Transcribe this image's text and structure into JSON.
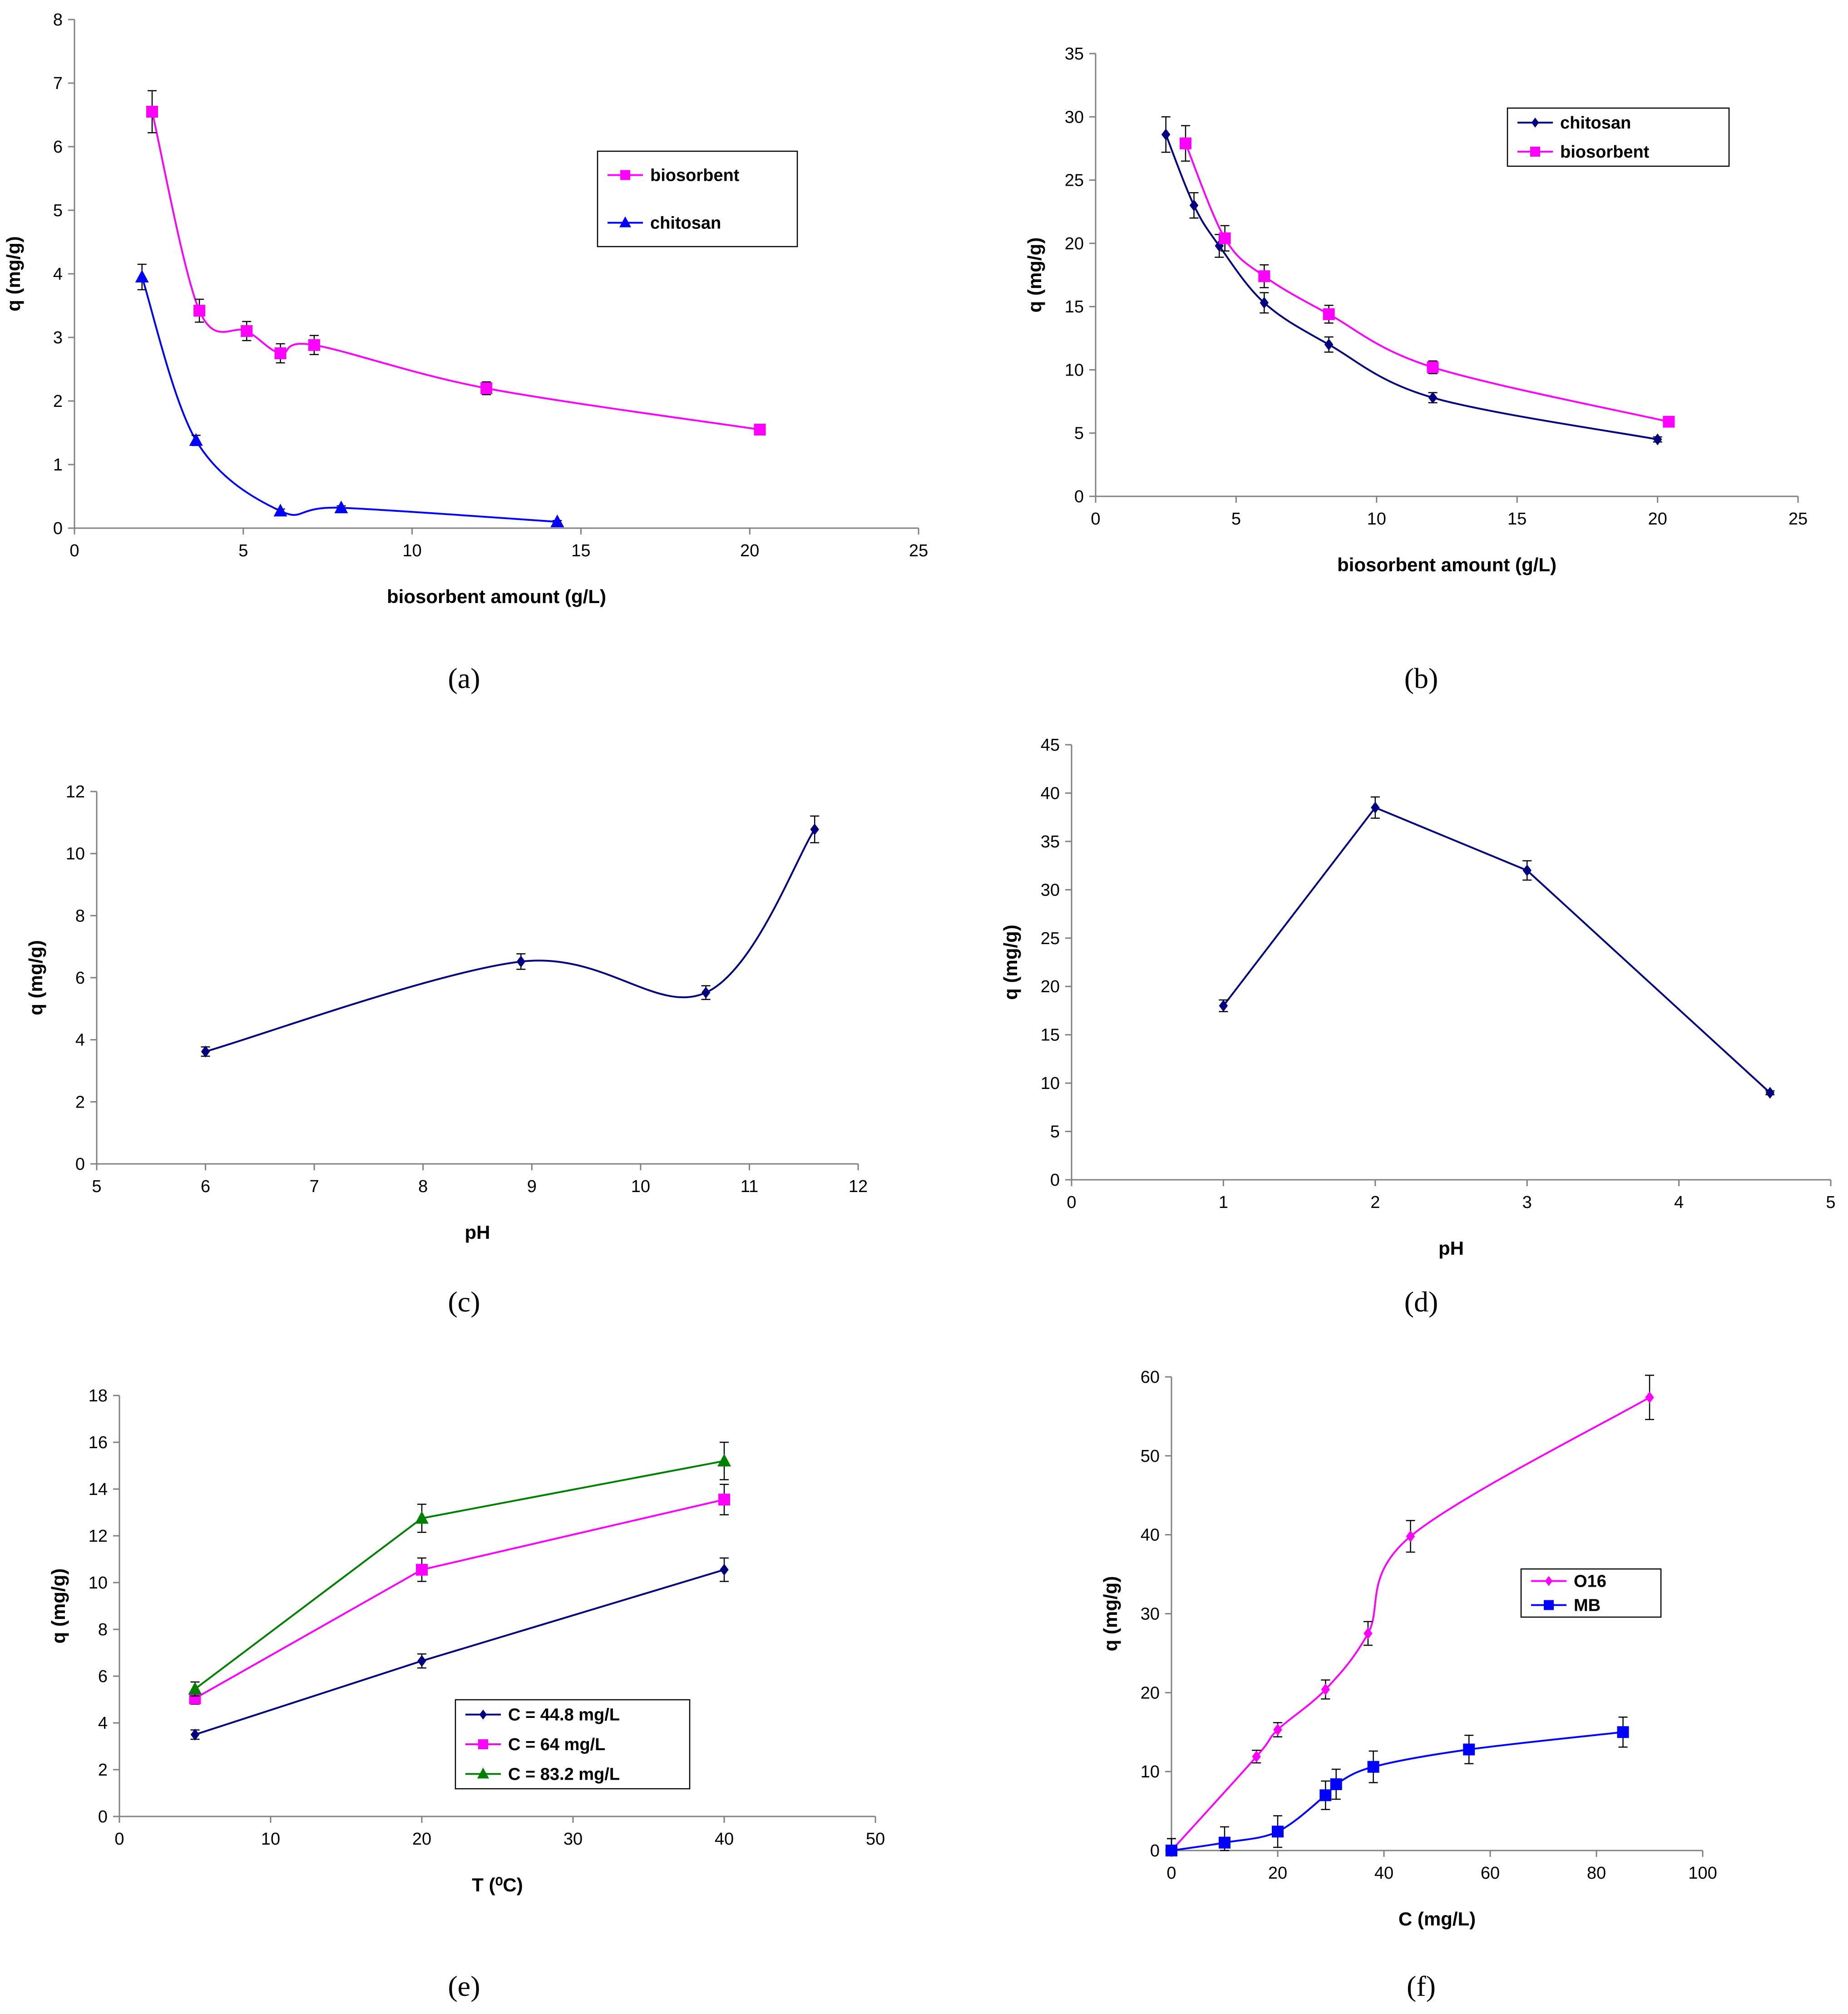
{
  "figure": {
    "panels": [
      "a",
      "b",
      "c",
      "d",
      "e",
      "f"
    ]
  },
  "colors": {
    "magenta": "#FF00FF",
    "blue": "#0000FF",
    "navy": "#000080",
    "green": "#008000",
    "axis": "#808080"
  },
  "chart_data": [
    {
      "panel": "a",
      "caption": "(a)",
      "type": "line",
      "smooth": true,
      "xlabel": "biosorbent amount  (g/L)",
      "ylabel": "q (mg/g)",
      "xlim": [
        0,
        25
      ],
      "ylim": [
        0,
        8
      ],
      "xticks": [
        0,
        5,
        10,
        15,
        20,
        25
      ],
      "yticks": [
        0,
        1,
        2,
        3,
        4,
        5,
        6,
        7,
        8
      ],
      "legend_position": "top-right",
      "series": [
        {
          "name": "biosorbent",
          "color": "#FF00FF",
          "marker": "square",
          "x": [
            2.3,
            3.7,
            5.1,
            6.1,
            7.1,
            12.2,
            20.3
          ],
          "y": [
            6.55,
            3.42,
            3.1,
            2.75,
            2.88,
            2.2,
            1.55
          ],
          "err": [
            0.33,
            0.18,
            0.15,
            0.15,
            0.15,
            0.1,
            0.05
          ]
        },
        {
          "name": "chitosan",
          "color": "#0000FF",
          "marker": "triangle",
          "x": [
            2.0,
            3.6,
            6.1,
            7.9,
            14.3
          ],
          "y": [
            3.95,
            1.38,
            0.27,
            0.32,
            0.1
          ],
          "err": [
            0.2,
            0.08,
            0.03,
            0.03,
            0.02
          ]
        }
      ]
    },
    {
      "panel": "b",
      "caption": "(b)",
      "type": "line",
      "smooth": true,
      "xlabel": "biosorbent amount (g/L)",
      "ylabel": "q (mg/g)",
      "xlim": [
        0,
        25
      ],
      "ylim": [
        0,
        35
      ],
      "xticks": [
        0,
        5,
        10,
        15,
        20,
        25
      ],
      "yticks": [
        0,
        5,
        10,
        15,
        20,
        25,
        30,
        35
      ],
      "legend_position": "top-right",
      "series": [
        {
          "name": "chitosan",
          "color": "#000080",
          "marker": "diamond",
          "x": [
            2.5,
            3.5,
            4.4,
            6.0,
            8.3,
            12.0,
            20.0
          ],
          "y": [
            28.6,
            23.0,
            19.8,
            15.3,
            12.0,
            7.8,
            4.5
          ],
          "err": [
            1.4,
            1.0,
            0.9,
            0.8,
            0.6,
            0.4,
            0.2
          ]
        },
        {
          "name": "biosorbent",
          "color": "#FF00FF",
          "marker": "square",
          "x": [
            3.2,
            4.6,
            6.0,
            8.3,
            12.0,
            20.4
          ],
          "y": [
            27.9,
            20.4,
            17.4,
            14.4,
            10.2,
            5.9
          ],
          "err": [
            1.4,
            1.0,
            0.9,
            0.7,
            0.5,
            0.2
          ]
        }
      ]
    },
    {
      "panel": "c",
      "caption": "(c)",
      "type": "line",
      "smooth": true,
      "xlabel": "pH",
      "ylabel": "q (mg/g)",
      "xlim": [
        5,
        12
      ],
      "ylim": [
        0,
        12
      ],
      "xticks": [
        5,
        6,
        7,
        8,
        9,
        10,
        11,
        12
      ],
      "yticks": [
        0,
        2,
        4,
        6,
        8,
        10,
        12
      ],
      "series": [
        {
          "name": "",
          "color": "#000080",
          "marker": "diamond",
          "x": [
            6.0,
            8.9,
            10.6,
            11.6
          ],
          "y": [
            3.62,
            6.52,
            5.52,
            10.78
          ],
          "err": [
            0.15,
            0.25,
            0.22,
            0.43
          ]
        }
      ]
    },
    {
      "panel": "d",
      "caption": "(d)",
      "type": "line",
      "smooth": false,
      "xlabel": "pH",
      "ylabel": "q (mg/g)",
      "xlim": [
        0,
        5
      ],
      "ylim": [
        0,
        45
      ],
      "xticks": [
        0,
        1,
        2,
        3,
        4,
        5
      ],
      "yticks": [
        0,
        5,
        10,
        15,
        20,
        25,
        30,
        35,
        40,
        45
      ],
      "series": [
        {
          "name": "",
          "color": "#000080",
          "marker": "diamond",
          "x": [
            1.0,
            2.0,
            3.0,
            4.6
          ],
          "y": [
            18.0,
            38.5,
            32.0,
            9.0
          ],
          "err": [
            0.6,
            1.1,
            1.0,
            0.2
          ]
        }
      ]
    },
    {
      "panel": "e",
      "caption": "(e)",
      "type": "line",
      "smooth": false,
      "xlabel": "T (⁰C)",
      "ylabel": "q (mg/g)",
      "xlim": [
        0,
        50
      ],
      "ylim": [
        0,
        18
      ],
      "xticks": [
        0,
        10,
        20,
        30,
        40,
        50
      ],
      "yticks": [
        0,
        2,
        4,
        6,
        8,
        10,
        12,
        14,
        16,
        18
      ],
      "legend_position": "bottom-right",
      "series": [
        {
          "name": "C = 44.8 mg/L",
          "color": "#000080",
          "marker": "diamond",
          "x": [
            5,
            20,
            40
          ],
          "y": [
            3.5,
            6.65,
            10.55
          ],
          "err": [
            0.2,
            0.3,
            0.5
          ]
        },
        {
          "name": "C = 64 mg/L",
          "color": "#FF00FF",
          "marker": "square",
          "x": [
            5,
            20,
            40
          ],
          "y": [
            5.05,
            10.55,
            13.55
          ],
          "err": [
            0.25,
            0.5,
            0.65
          ]
        },
        {
          "name": "C = 83.2 mg/L",
          "color": "#008000",
          "marker": "triangle",
          "x": [
            5,
            20,
            40
          ],
          "y": [
            5.45,
            12.75,
            15.2
          ],
          "err": [
            0.3,
            0.6,
            0.8
          ]
        }
      ]
    },
    {
      "panel": "f",
      "caption": "(f)",
      "type": "line",
      "smooth": true,
      "xlabel": "C (mg/L)",
      "ylabel": "q (mg/g)",
      "xlim": [
        0,
        100
      ],
      "ylim": [
        0,
        60
      ],
      "xticks": [
        0,
        20,
        40,
        60,
        80,
        100
      ],
      "yticks": [
        0,
        10,
        20,
        30,
        40,
        50,
        60
      ],
      "legend_position": "center-right",
      "series": [
        {
          "name": "O16",
          "color": "#FF00FF",
          "marker": "diamond",
          "x": [
            0,
            16,
            20,
            29,
            37,
            45,
            90
          ],
          "y": [
            0,
            11.9,
            15.3,
            20.4,
            27.5,
            39.8,
            57.4
          ],
          "err": [
            1.5,
            0.8,
            0.9,
            1.2,
            1.5,
            2.0,
            2.8
          ]
        },
        {
          "name": "MB",
          "color": "#0000FF",
          "marker": "square",
          "x": [
            0,
            10,
            20,
            29,
            31,
            38,
            56,
            85
          ],
          "y": [
            0,
            1.0,
            2.4,
            7.0,
            8.4,
            10.6,
            12.8,
            15.0
          ],
          "err": [
            1.5,
            2.0,
            2.0,
            1.8,
            1.9,
            2.0,
            1.8,
            1.9
          ]
        }
      ]
    }
  ]
}
